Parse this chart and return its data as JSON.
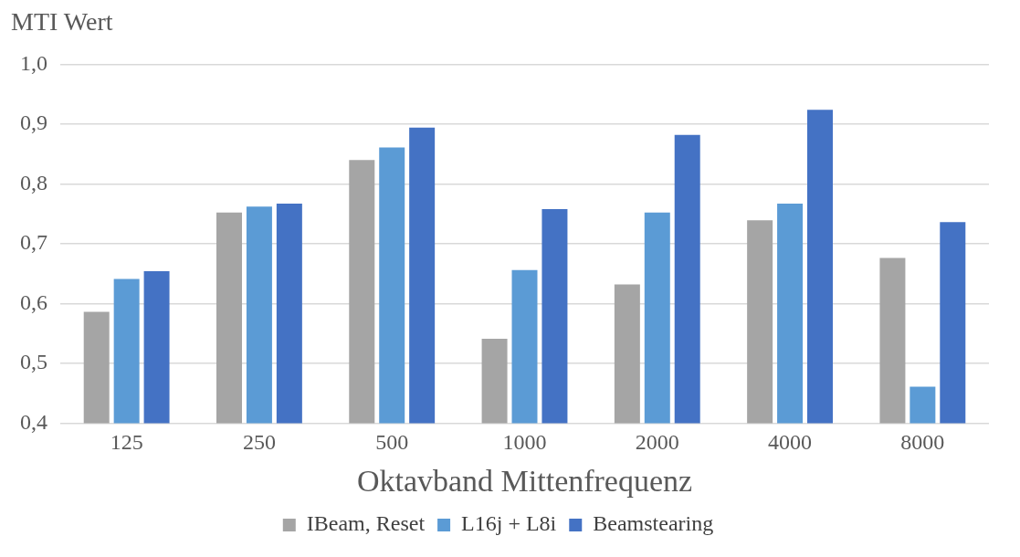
{
  "chart_data": {
    "type": "bar",
    "ylabel": "MTI Wert",
    "xlabel": "Oktavband Mittenfrequenz",
    "categories": [
      "125",
      "250",
      "500",
      "1000",
      "2000",
      "4000",
      "8000"
    ],
    "series": [
      {
        "name": "IBeam, Reset",
        "color": "#a5a5a5",
        "values": [
          0.586,
          0.752,
          0.84,
          0.541,
          0.632,
          0.739,
          0.676
        ]
      },
      {
        "name": "L16j + L8i",
        "color": "#5b9bd5",
        "values": [
          0.641,
          0.762,
          0.861,
          0.656,
          0.752,
          0.767,
          0.461
        ]
      },
      {
        "name": "Beamstearing",
        "color": "#4472c4",
        "values": [
          0.654,
          0.767,
          0.894,
          0.758,
          0.882,
          0.924,
          0.736
        ]
      }
    ],
    "ylim": [
      0.4,
      1.0
    ],
    "yticks": [
      {
        "value": 0.4,
        "label": "0,4"
      },
      {
        "value": 0.5,
        "label": "0,5"
      },
      {
        "value": 0.6,
        "label": "0,6"
      },
      {
        "value": 0.7,
        "label": "0,7"
      },
      {
        "value": 0.8,
        "label": "0,8"
      },
      {
        "value": 0.9,
        "label": "0,9"
      },
      {
        "value": 1.0,
        "label": "1,0"
      }
    ],
    "grid": "y",
    "legend": "bottom"
  }
}
